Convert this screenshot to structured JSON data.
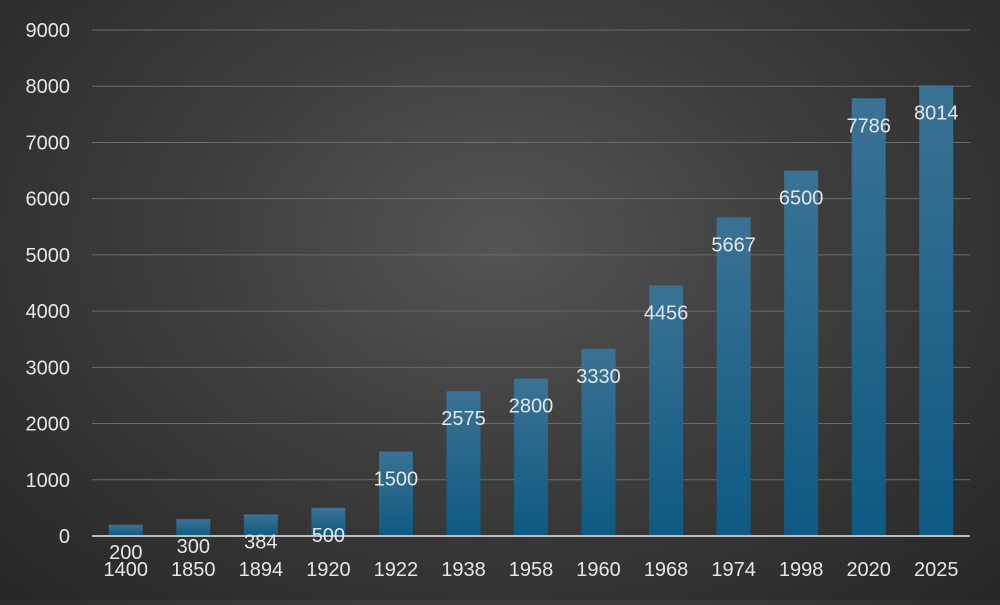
{
  "chart_data": {
    "type": "bar",
    "title": "",
    "xlabel": "",
    "ylabel": "",
    "categories": [
      "1400",
      "1850",
      "1894",
      "1920",
      "1922",
      "1938",
      "1958",
      "1960",
      "1968",
      "1974",
      "1998",
      "2020",
      "2025"
    ],
    "values": [
      200,
      300,
      384,
      500,
      1500,
      2575,
      2800,
      3330,
      4456,
      5667,
      6500,
      7786,
      8014
    ],
    "ylim": [
      0,
      9000
    ],
    "yticks": [
      0,
      1000,
      2000,
      3000,
      4000,
      5000,
      6000,
      7000,
      8000,
      9000
    ],
    "grid": true,
    "legend": "none",
    "data_labels": true,
    "colors": {
      "bar_top": "#3b7294",
      "bar_bottom": "#0e5a82",
      "text": "#e6e6e6",
      "grid": "#6a6a6a",
      "axis": "#bdbdbd"
    }
  }
}
